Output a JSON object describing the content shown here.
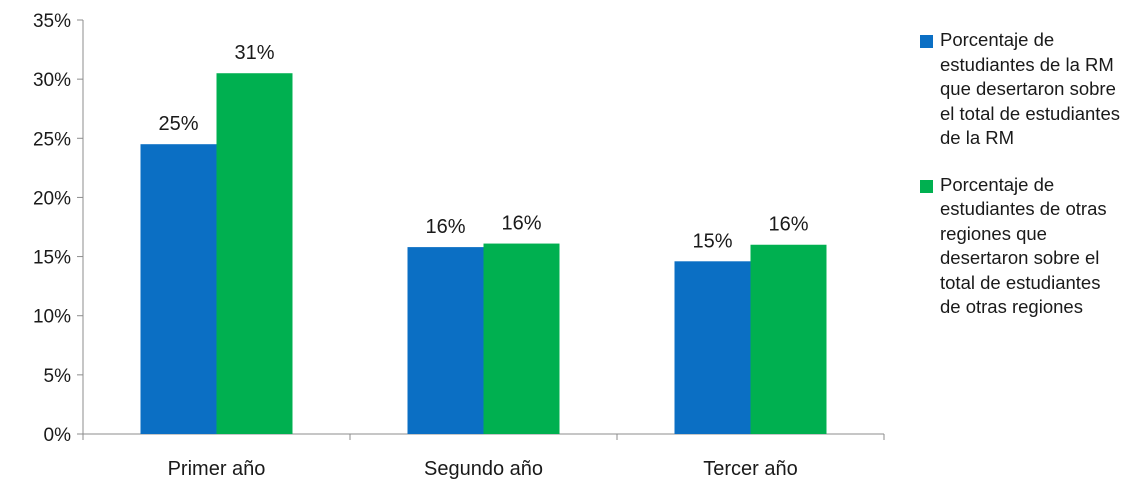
{
  "chart_data": {
    "type": "bar",
    "categories": [
      "Primer año",
      "Segundo año",
      "Tercer año"
    ],
    "series": [
      {
        "name": "Porcentaje de estudiantes de la RM que desertaron sobre el total de estudiantes de la RM",
        "values": [
          24.5,
          15.8,
          14.6
        ],
        "labels": [
          "25%",
          "16%",
          "15%"
        ],
        "color": "#0b6fc4"
      },
      {
        "name": "Porcentaje de estudiantes de otras regiones que desertaron sobre el total de estudiantes de otras regiones",
        "values": [
          30.5,
          16.1,
          16.0
        ],
        "labels": [
          "31%",
          "16%",
          "16%"
        ],
        "color": "#00b050"
      }
    ],
    "yticks": [
      "0%",
      "5%",
      "10%",
      "15%",
      "20%",
      "25%",
      "30%",
      "35%"
    ],
    "ylim": [
      0,
      35
    ],
    "grid": false,
    "legend_position": "right"
  }
}
